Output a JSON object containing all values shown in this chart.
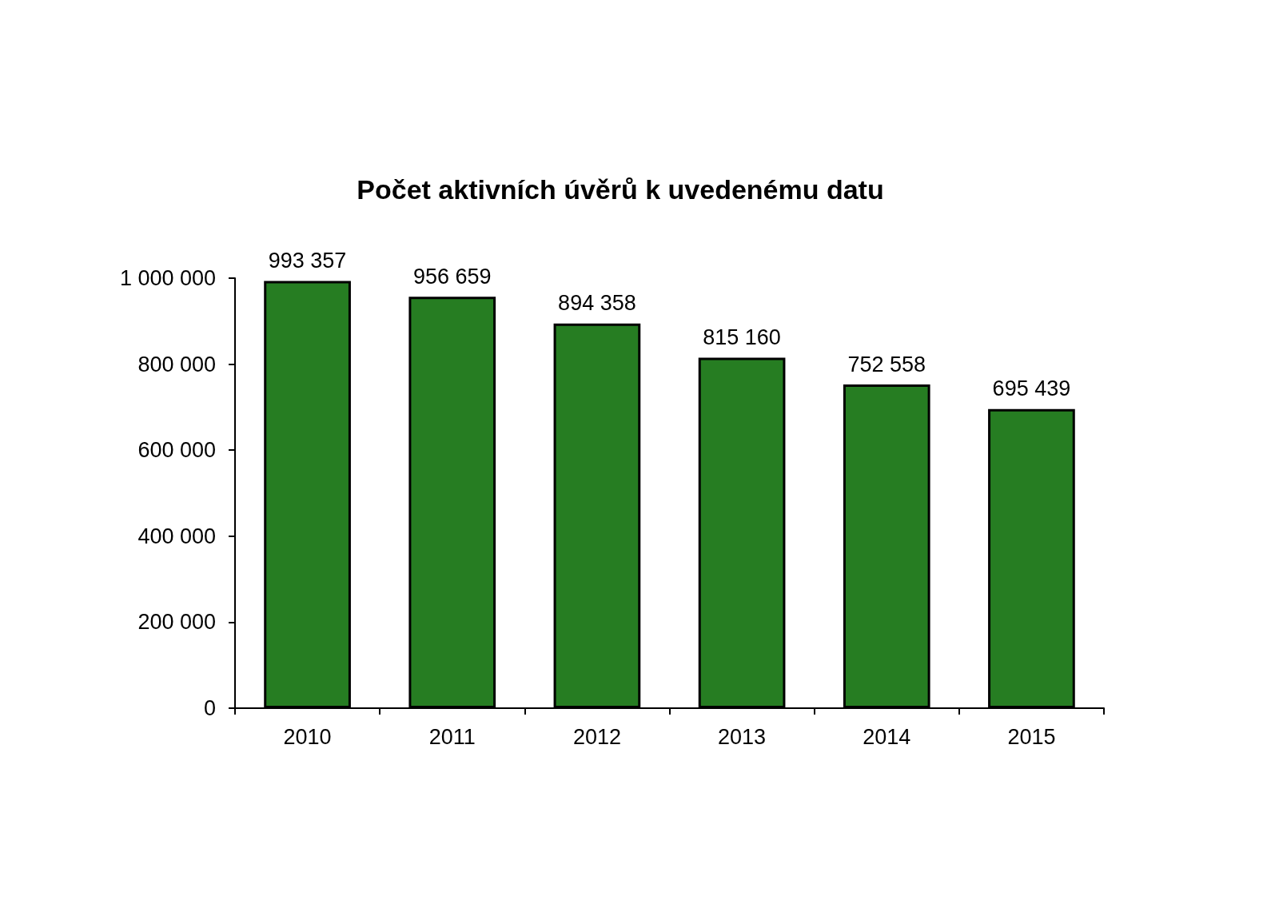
{
  "chart_data": {
    "type": "bar",
    "title": "Počet aktivních úvěrů k uvedenému datu",
    "categories": [
      "2010",
      "2011",
      "2012",
      "2013",
      "2014",
      "2015"
    ],
    "values": [
      993357,
      956659,
      894358,
      815160,
      752558,
      695439
    ],
    "value_labels": [
      "993 357",
      "956 659",
      "894 358",
      "815 160",
      "752 558",
      "695 439"
    ],
    "color": "#267d22",
    "ylim": [
      0,
      1000000
    ],
    "yticks": [
      0,
      {
        "value": 200000,
        "label": "200 000"
      },
      {
        "value": 400000,
        "label": "400 000"
      },
      {
        "value": 600000,
        "label": "600 000"
      },
      {
        "value": 800000,
        "label": "800 000"
      },
      {
        "value": 1000000,
        "label": "1 000 000"
      }
    ],
    "grid": false
  }
}
